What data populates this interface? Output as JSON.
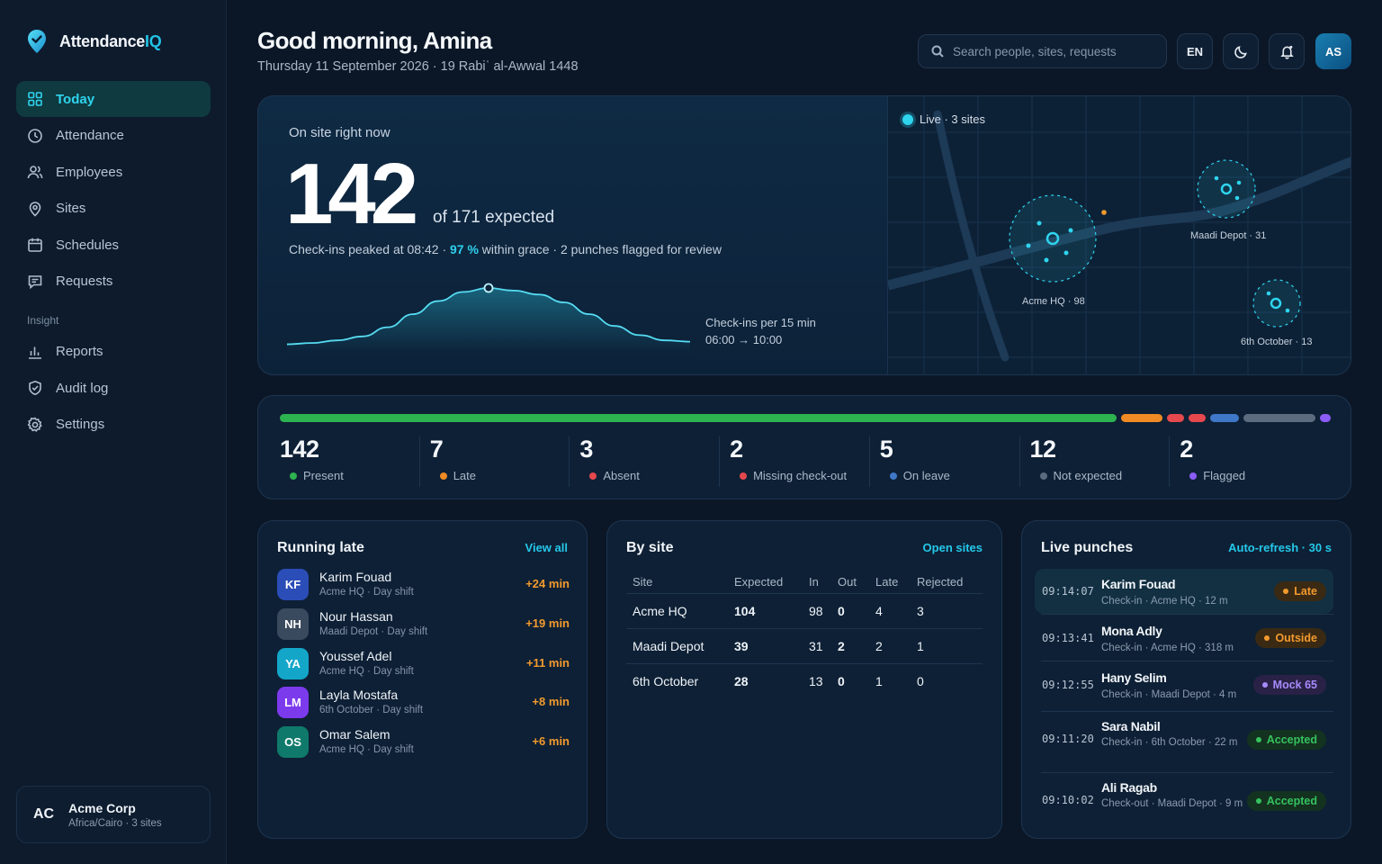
{
  "brand": {
    "name_a": "Attendance",
    "name_b": "IQ"
  },
  "nav": {
    "items": [
      {
        "label": "Today",
        "icon": "grid-icon"
      },
      {
        "label": "Attendance",
        "icon": "clock-icon"
      },
      {
        "label": "Employees",
        "icon": "users-icon"
      },
      {
        "label": "Sites",
        "icon": "pin-icon"
      },
      {
        "label": "Schedules",
        "icon": "calendar-icon"
      },
      {
        "label": "Requests",
        "icon": "message-icon"
      }
    ],
    "section": "Insight",
    "insight_items": [
      {
        "label": "Reports",
        "icon": "bar-chart-icon"
      },
      {
        "label": "Audit log",
        "icon": "shield-check-icon"
      },
      {
        "label": "Settings",
        "icon": "gear-icon"
      }
    ]
  },
  "org": {
    "initials": "AC",
    "name": "Acme Corp",
    "sub": "Africa/Cairo · 3 sites"
  },
  "header": {
    "greeting": "Good morning, Amina",
    "date": "Thursday 11 September 2026 · 19 Rabiʿ al-Awwal 1448",
    "search_placeholder": "Search people, sites, requests",
    "lang": "EN",
    "user_initials": "AS"
  },
  "hero": {
    "label": "On site right now",
    "count": "142",
    "of_expected": "of 171 expected",
    "sub_a": "Check-ins peaked at 08:42 · ",
    "sub_pct": "97 %",
    "sub_b": " within grace · 2 punches flagged for review",
    "chart_label": "Check-ins per 15 min",
    "chart_range": "06:00 → 10:00",
    "live": "Live · 3 sites",
    "sites": [
      {
        "label": "Acme HQ · 98"
      },
      {
        "label": "Maadi Depot · 31"
      },
      {
        "label": "6th October · 13"
      }
    ]
  },
  "chart_data": {
    "type": "area",
    "x": [
      "06:00",
      "06:15",
      "06:30",
      "06:45",
      "07:00",
      "07:15",
      "07:30",
      "07:45",
      "08:00",
      "08:15",
      "08:30",
      "08:45",
      "09:00",
      "09:15",
      "09:30",
      "09:45",
      "10:00"
    ],
    "values": [
      1,
      2,
      4,
      7,
      14,
      24,
      34,
      41,
      44,
      42,
      39,
      33,
      24,
      15,
      8,
      4,
      3
    ],
    "peak_index": 8,
    "xlabel": "",
    "ylabel": ""
  },
  "status": {
    "colors": {
      "present": "#2db34f",
      "late": "#f08a24",
      "absent": "#e5484d",
      "missing": "#e5484d",
      "leave": "#3f78c8",
      "notexp": "#5c6b7e",
      "flagged": "#8b5cf6"
    },
    "segments": [
      142,
      7,
      3,
      2,
      5,
      12,
      2
    ],
    "stats": [
      {
        "num": "142",
        "label": "Present",
        "color": "#2db34f"
      },
      {
        "num": "7",
        "label": "Late",
        "color": "#f08a24"
      },
      {
        "num": "3",
        "label": "Absent",
        "color": "#e5484d"
      },
      {
        "num": "2",
        "label": "Missing check-out",
        "color": "#e5484d"
      },
      {
        "num": "5",
        "label": "On leave",
        "color": "#3f78c8"
      },
      {
        "num": "12",
        "label": "Not expected",
        "color": "#5c6b7e"
      },
      {
        "num": "2",
        "label": "Flagged",
        "color": "#8b5cf6"
      }
    ]
  },
  "late": {
    "title": "Running late",
    "link": "View all",
    "rows": [
      {
        "initials": "KF",
        "name": "Karim Fouad",
        "sub": "Acme HQ · Day shift",
        "min": "+24 min",
        "color": "#2b4db8"
      },
      {
        "initials": "NH",
        "name": "Nour Hassan",
        "sub": "Maadi Depot · Day shift",
        "min": "+19 min",
        "color": "#3a4a5e"
      },
      {
        "initials": "YA",
        "name": "Youssef Adel",
        "sub": "Acme HQ · Day shift",
        "min": "+11 min",
        "color": "#13a6c9"
      },
      {
        "initials": "LM",
        "name": "Layla Mostafa",
        "sub": "6th October · Day shift",
        "min": "+8 min",
        "color": "#7c3aed"
      },
      {
        "initials": "OS",
        "name": "Omar Salem",
        "sub": "Acme HQ · Day shift",
        "min": "+6 min",
        "color": "#0f7a6b"
      }
    ]
  },
  "bysite": {
    "title": "By site",
    "link": "Open sites",
    "headers": [
      "Site",
      "Expected",
      "In",
      "Out",
      "Late",
      "Rejected"
    ],
    "rows": [
      {
        "site": "Acme HQ",
        "expected": "104",
        "in": "98",
        "out": "0",
        "late": "4",
        "rejected": "3"
      },
      {
        "site": "Maadi Depot",
        "expected": "39",
        "in": "31",
        "out": "2",
        "late": "2",
        "rejected": "1"
      },
      {
        "site": "6th October",
        "expected": "28",
        "in": "13",
        "out": "0",
        "late": "1",
        "rejected": "0"
      }
    ]
  },
  "punches": {
    "title": "Live punches",
    "link": "Auto-refresh · 30 s",
    "rows": [
      {
        "time": "09:14:07",
        "name": "Karim Fouad",
        "sub": "Check-in · Acme HQ · 12 m",
        "status": "Late",
        "fg": "#f29a2e",
        "bg": "#3a2a14"
      },
      {
        "time": "09:13:41",
        "name": "Mona Adly",
        "sub": "Check-in · Acme HQ · 318 m",
        "status": "Outside",
        "fg": "#f29a2e",
        "bg": "#3a2a14"
      },
      {
        "time": "09:12:55",
        "name": "Hany Selim",
        "sub": "Check-in · Maadi Depot · 4 m",
        "status": "Mock 65",
        "fg": "#a78bfa",
        "bg": "#2a2147"
      },
      {
        "time": "09:11:20",
        "name": "Sara Nabil",
        "sub": "Check-in · 6th October · 22 m",
        "status": "Accepted",
        "fg": "#35c25f",
        "bg": "#13321f"
      },
      {
        "time": "09:10:02",
        "name": "Ali Ragab",
        "sub": "Check-out · Maadi Depot · 9 m",
        "status": "Accepted",
        "fg": "#35c25f",
        "bg": "#13321f"
      }
    ]
  }
}
